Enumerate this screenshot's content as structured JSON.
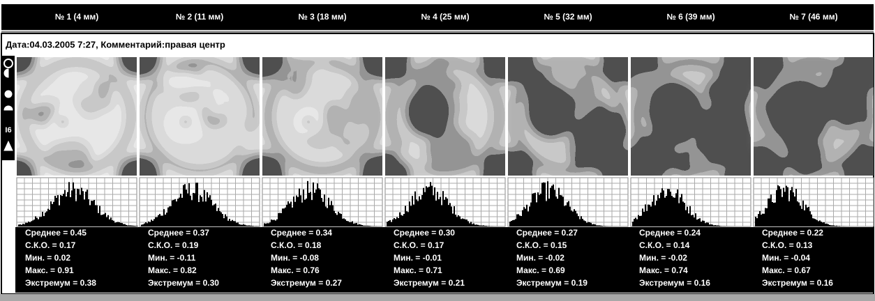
{
  "header": {
    "columns": [
      "№ 1 (4 мм)",
      "№ 2 (11 мм)",
      "№ 3 (18 мм)",
      "№ 4 (25 мм)",
      "№ 5 (32 мм)",
      "№ 6 (39 мм)",
      "№ 7 (46 мм)"
    ]
  },
  "info": "Дата:04.03.2005 7:27, Комментарий:правая центр",
  "panels": [
    {
      "stats": [
        "Среднее = 0.45",
        "С.К.О. = 0.17",
        "Мин. = 0.02",
        "Макс. = 0.91",
        "Экстремум = 0.38"
      ]
    },
    {
      "stats": [
        "Среднее = 0.37",
        "С.К.О. = 0.19",
        "Мин. = -0.11",
        "Макс. = 0.82",
        "Экстремум = 0.30"
      ]
    },
    {
      "stats": [
        "Среднее = 0.34",
        "С.К.О. = 0.18",
        "Мин. = -0.08",
        "Макс. = 0.76",
        "Экстремум = 0.27"
      ]
    },
    {
      "stats": [
        "Среднее = 0.30",
        "С.К.О. = 0.17",
        "Мин. = -0.01",
        "Макс. = 0.71",
        "Экстремум = 0.21"
      ]
    },
    {
      "stats": [
        "Среднее = 0.27",
        "С.К.О. = 0.15",
        "Мин. = -0.02",
        "Макс. = 0.69",
        "Экстремум = 0.19"
      ]
    },
    {
      "stats": [
        "Среднее = 0.24",
        "С.К.О. = 0.14",
        "Мин. = -0.02",
        "Макс. = 0.74",
        "Экстремум = 0.16"
      ]
    },
    {
      "stats": [
        "Среднее = 0.22",
        "С.К.О. = 0.13",
        "Мин. = -0.04",
        "Макс. = 0.67",
        "Экстремум = 0.16"
      ]
    }
  ]
}
